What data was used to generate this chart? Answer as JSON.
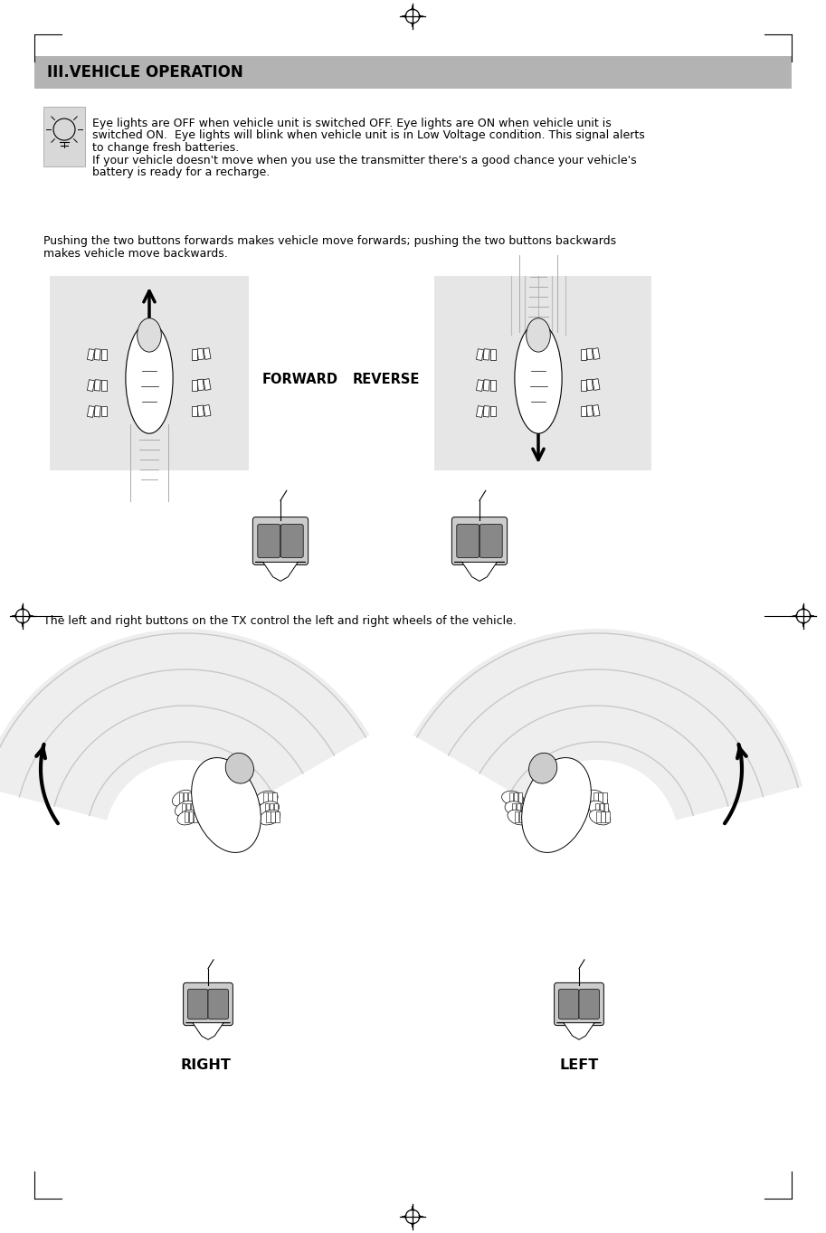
{
  "title": "III.VEHICLE OPERATION",
  "title_bg": "#b3b3b3",
  "bg_color": "#ffffff",
  "page_width": 9.13,
  "page_height": 13.63,
  "dpi": 100,
  "tip_line1": "Eye lights are OFF when vehicle unit is switched OFF. Eye lights are ON when vehicle unit is",
  "tip_line2": "switched ON.  Eye lights will blink when vehicle unit is in Low Voltage condition. This signal alerts",
  "tip_line3": "to change fresh batteries.",
  "tip_line4": "If your vehicle doesn't move when you use the transmitter there's a good chance your vehicle's",
  "tip_line5": "battery is ready for a recharge.",
  "push_line1": "Pushing the two buttons forwards makes vehicle move forwards; pushing the two buttons backwards",
  "push_line2": "makes vehicle move backwards.",
  "forward_label": "FORWARD",
  "reverse_label": "REVERSE",
  "tx_line": "The left and right buttons on the TX control the left and right wheels of the vehicle.",
  "right_label": "RIGHT",
  "left_label": "LEFT",
  "font_body": 9.0,
  "font_title": 12,
  "font_label": 10.5
}
